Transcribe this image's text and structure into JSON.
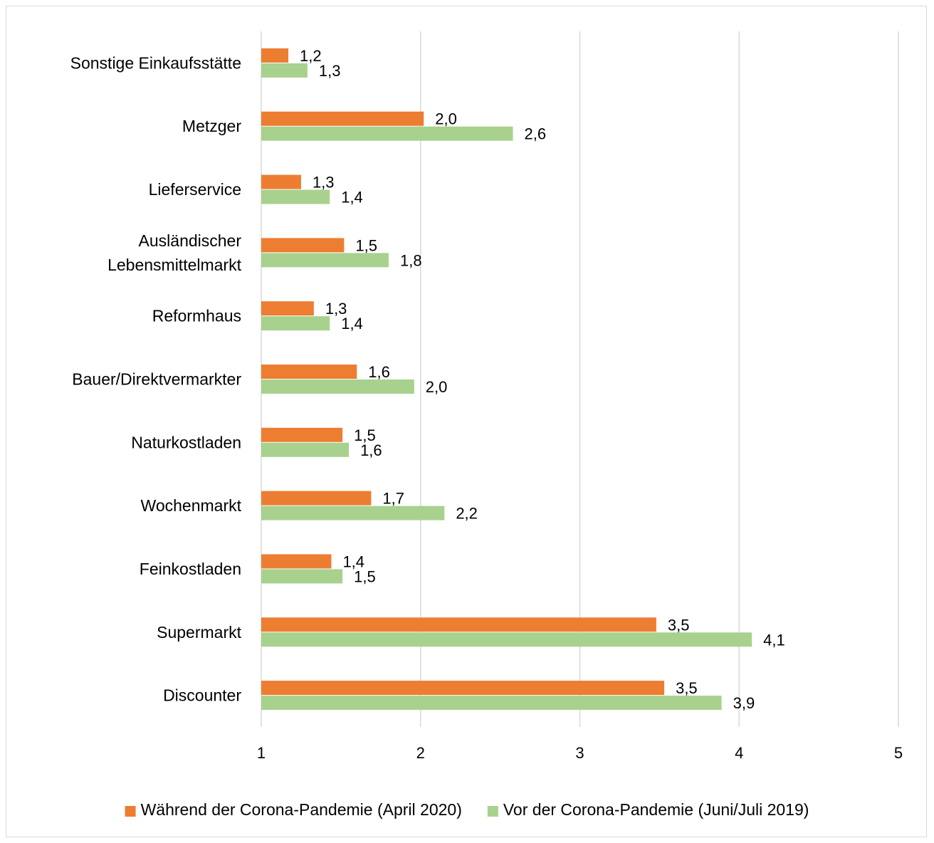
{
  "chart_data": {
    "type": "bar",
    "orientation": "horizontal",
    "title": "",
    "xlabel": "",
    "ylabel": "",
    "xlim": [
      1,
      5
    ],
    "xticks": [
      "1",
      "2",
      "3",
      "4",
      "5"
    ],
    "grid": true,
    "legend_position": "bottom",
    "categories": [
      [
        "Sonstige Einkaufsstätte"
      ],
      [
        "Metzger"
      ],
      [
        "Lieferservice"
      ],
      [
        "Ausländischer",
        "Lebensmittelmarkt"
      ],
      [
        "Reformhaus"
      ],
      [
        "Bauer/Direktvermarkter"
      ],
      [
        "Naturkostladen"
      ],
      [
        "Wochenmarkt"
      ],
      [
        "Feinkostladen"
      ],
      [
        "Supermarkt"
      ],
      [
        "Discounter"
      ]
    ],
    "series": [
      {
        "name": "Während der  Corona-Pandemie (April 2020)",
        "color": "#ed7d31",
        "values": [
          1.17,
          2.02,
          1.25,
          1.52,
          1.33,
          1.6,
          1.51,
          1.69,
          1.44,
          3.48,
          3.53
        ],
        "labels": [
          "1,2",
          "2,0",
          "1,3",
          "1,5",
          "1,3",
          "1,6",
          "1,5",
          "1,7",
          "1,4",
          "3,5",
          "3,5"
        ]
      },
      {
        "name": "Vor der Corona-Pandemie (Juni/Juli 2019)",
        "color": "#a9d18e",
        "values": [
          1.29,
          2.58,
          1.43,
          1.8,
          1.43,
          1.96,
          1.55,
          2.15,
          1.51,
          4.08,
          3.89
        ],
        "labels": [
          "1,3",
          "2,6",
          "1,4",
          "1,8",
          "1,4",
          "2,0",
          "1,6",
          "2,2",
          "1,5",
          "4,1",
          "3,9"
        ]
      }
    ]
  }
}
